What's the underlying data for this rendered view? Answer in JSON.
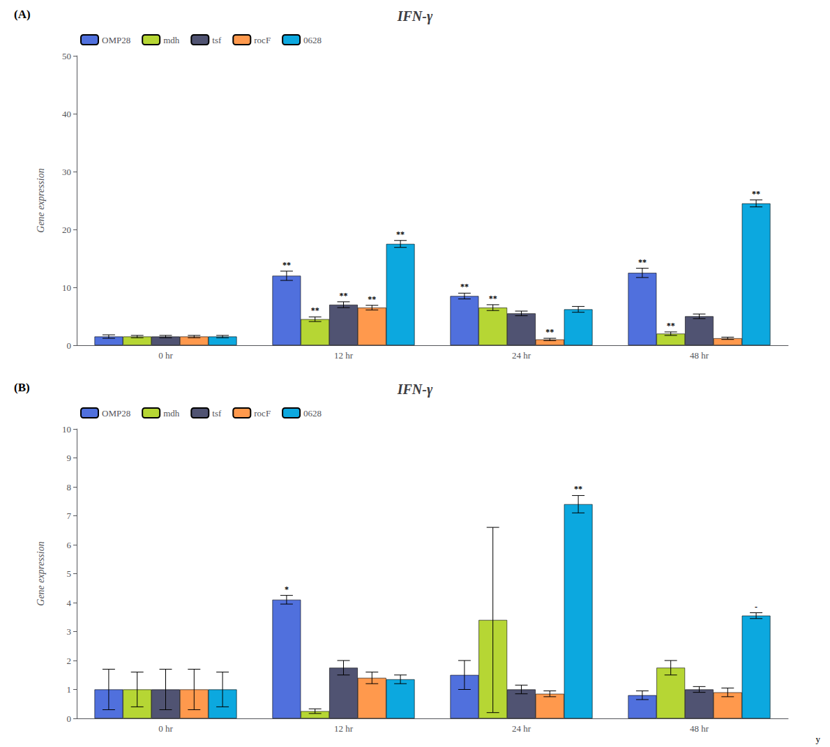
{
  "chart_data": [
    {
      "type": "bar",
      "title": "IFN-γ",
      "ylabel": "Gene expression",
      "annotations": [
        "(A)"
      ],
      "categories": [
        "0 hr",
        "12 hr",
        "24 hr",
        "48 hr"
      ],
      "series": [
        {
          "name": "OMP28",
          "values": [
            1.5,
            12.0,
            8.5,
            12.5
          ],
          "errors": [
            0.3,
            0.8,
            0.5,
            0.8
          ],
          "annotations": [
            null,
            "**",
            "**",
            "**"
          ]
        },
        {
          "name": "mdh",
          "values": [
            1.5,
            4.5,
            6.5,
            2.0
          ],
          "errors": [
            0.2,
            0.4,
            0.5,
            0.3
          ],
          "annotations": [
            null,
            "**",
            "**",
            "**"
          ]
        },
        {
          "name": "tsf",
          "values": [
            1.5,
            7.0,
            5.5,
            5.0
          ],
          "errors": [
            0.2,
            0.5,
            0.4,
            0.4
          ],
          "annotations": [
            null,
            "**",
            null,
            null
          ]
        },
        {
          "name": "rocF",
          "values": [
            1.5,
            6.5,
            1.0,
            1.2
          ],
          "errors": [
            0.2,
            0.4,
            0.2,
            0.2
          ],
          "annotations": [
            null,
            "**",
            "**",
            null
          ]
        },
        {
          "name": "0628",
          "values": [
            1.5,
            17.5,
            6.2,
            24.5
          ],
          "errors": [
            0.2,
            0.6,
            0.5,
            0.6
          ],
          "annotations": [
            null,
            "**",
            null,
            "**"
          ]
        }
      ],
      "ylim": [
        0,
        50
      ],
      "yticks": [
        0,
        10,
        20,
        30,
        40,
        50
      ],
      "grid": false,
      "legend": "upper left"
    },
    {
      "type": "bar",
      "title": "IFN-γ",
      "ylabel": "Gene expression",
      "annotations": [
        "(B)",
        "y"
      ],
      "categories": [
        "0 hr",
        "12 hr",
        "24 hr",
        "48 hr"
      ],
      "series": [
        {
          "name": "OMP28",
          "values": [
            1.0,
            4.1,
            1.5,
            0.8
          ],
          "errors": [
            0.7,
            0.15,
            0.5,
            0.15
          ],
          "annotations": [
            null,
            "*",
            null,
            null
          ]
        },
        {
          "name": "mdh",
          "values": [
            1.0,
            0.25,
            3.4,
            1.75
          ],
          "errors": [
            0.6,
            0.08,
            3.2,
            0.25
          ],
          "annotations": [
            null,
            null,
            null,
            null
          ]
        },
        {
          "name": "tsf",
          "values": [
            1.0,
            1.75,
            1.0,
            1.0
          ],
          "errors": [
            0.7,
            0.25,
            0.15,
            0.1
          ],
          "annotations": [
            null,
            null,
            null,
            null
          ]
        },
        {
          "name": "rocF",
          "values": [
            1.0,
            1.4,
            0.85,
            0.9
          ],
          "errors": [
            0.7,
            0.2,
            0.1,
            0.15
          ],
          "annotations": [
            null,
            null,
            null,
            null
          ]
        },
        {
          "name": "0628",
          "values": [
            1.0,
            1.35,
            7.4,
            3.55
          ],
          "errors": [
            0.6,
            0.15,
            0.3,
            0.1
          ],
          "annotations": [
            null,
            null,
            "**",
            "-"
          ]
        }
      ],
      "ylim": [
        0,
        10
      ],
      "yticks": [
        0,
        1,
        2,
        3,
        4,
        5,
        6,
        7,
        8,
        9,
        10
      ],
      "grid": false,
      "legend": "upper left"
    }
  ]
}
